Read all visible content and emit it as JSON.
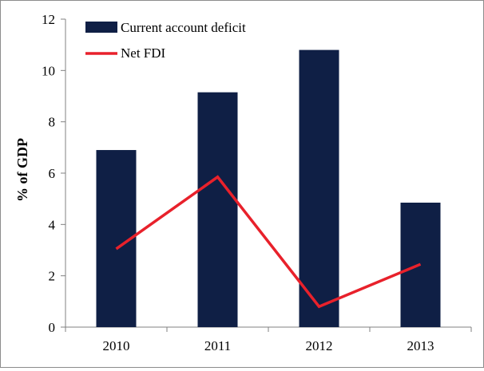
{
  "chart_data": {
    "type": "bar",
    "title": "",
    "xlabel": "",
    "ylabel": "% of GDP",
    "categories": [
      "2010",
      "2011",
      "2012",
      "2013"
    ],
    "ylim": [
      0,
      12
    ],
    "yticks": [
      0,
      2,
      4,
      6,
      8,
      10,
      12
    ],
    "grid": false,
    "legend_position": "top-left",
    "series": [
      {
        "name": "Current account deficit",
        "type": "bar",
        "color": "#0f1f45",
        "values": [
          6.9,
          9.15,
          10.8,
          4.85
        ]
      },
      {
        "name": "Net FDI",
        "type": "line",
        "color": "#e8212b",
        "values": [
          3.05,
          5.85,
          0.8,
          2.45
        ]
      }
    ]
  }
}
